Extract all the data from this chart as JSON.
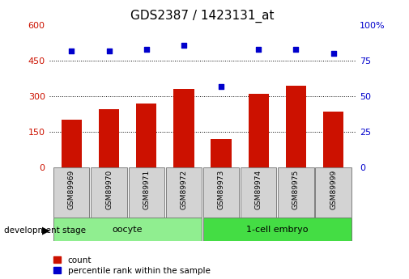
{
  "title": "GDS2387 / 1423131_at",
  "samples": [
    "GSM89969",
    "GSM89970",
    "GSM89971",
    "GSM89972",
    "GSM89973",
    "GSM89974",
    "GSM89975",
    "GSM89999"
  ],
  "counts": [
    200,
    245,
    270,
    330,
    120,
    310,
    345,
    235
  ],
  "percentile_ranks": [
    82,
    82,
    83,
    86,
    57,
    83,
    83,
    80
  ],
  "groups": [
    {
      "label": "oocyte",
      "start": 0,
      "end": 4,
      "color": "#90ee90"
    },
    {
      "label": "1-cell embryo",
      "start": 4,
      "end": 8,
      "color": "#44dd44"
    }
  ],
  "bar_color": "#cc1100",
  "dot_color": "#0000cc",
  "left_axis_color": "#cc1100",
  "right_axis_color": "#0000cc",
  "left_ylim": [
    0,
    600
  ],
  "right_ylim": [
    0,
    100
  ],
  "left_yticks": [
    0,
    150,
    300,
    450,
    600
  ],
  "right_yticks": [
    0,
    25,
    50,
    75,
    100
  ],
  "grid_lines": [
    150,
    300,
    450
  ],
  "background_color": "#ffffff",
  "xlabel_dev_stage": "development stage",
  "legend_count_label": "count",
  "legend_pct_label": "percentile rank within the sample",
  "title_fontsize": 11,
  "tick_fontsize": 8,
  "label_fontsize": 8
}
